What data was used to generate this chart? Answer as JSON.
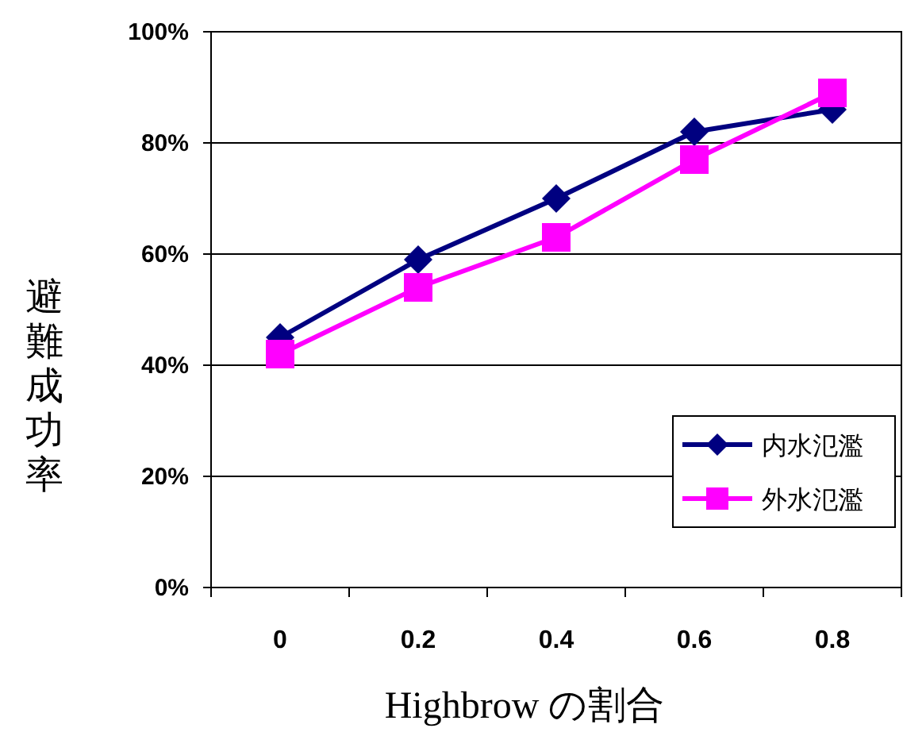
{
  "chart_data": {
    "type": "line",
    "xlabel": "Highbrow の割合",
    "ylabel": "避難成功率",
    "categories": [
      "0",
      "0.2",
      "0.4",
      "0.6",
      "0.8"
    ],
    "ylim": [
      0,
      1
    ],
    "yticks": [
      {
        "value": 0,
        "label": "0%"
      },
      {
        "value": 0.2,
        "label": "20%"
      },
      {
        "value": 0.4,
        "label": "40%"
      },
      {
        "value": 0.6,
        "label": "60%"
      },
      {
        "value": 0.8,
        "label": "80%"
      },
      {
        "value": 1,
        "label": "100%"
      }
    ],
    "grid": "y",
    "legend": "bottom right",
    "series": [
      {
        "name": "内水氾濫",
        "color": "#000080",
        "marker": "diamond",
        "values": [
          0.45,
          0.59,
          0.7,
          0.82,
          0.86
        ]
      },
      {
        "name": "外水氾濫",
        "color": "#ff00ff",
        "marker": "square",
        "values": [
          0.42,
          0.54,
          0.63,
          0.77,
          0.89
        ]
      }
    ]
  }
}
